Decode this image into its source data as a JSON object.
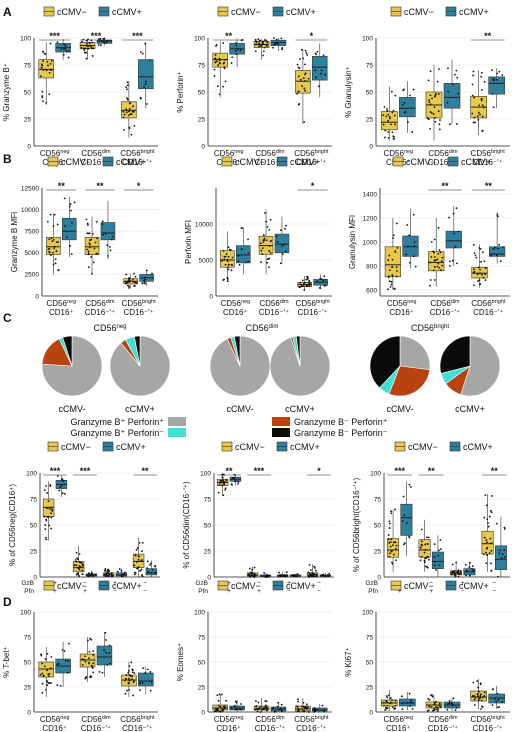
{
  "colors": {
    "cmv_neg": "#E8C84A",
    "cmv_pos": "#2E7F9B",
    "ggb_gray": "#A6A6A6",
    "gzb_only": "#3FE0D6",
    "pfn_only": "#B8430F",
    "double_neg": "#0A0A0A"
  },
  "legend": {
    "neg": "cCMV−",
    "pos": "cCMV+"
  },
  "panels": {
    "A": {
      "letter": "A"
    },
    "B": {
      "letter": "B"
    },
    "C": {
      "letter": "C"
    },
    "D": {
      "letter": "D"
    }
  },
  "pie_legend": [
    {
      "label": "Granzyme B⁺ Perforin⁺",
      "color_key": "ggb_gray"
    },
    {
      "label": "Granzyme B⁻ Perforin⁺",
      "color_key": "pfn_only"
    },
    {
      "label": "Granzyme B⁺ Perforin⁻",
      "color_key": "gzb_only"
    },
    {
      "label": "Granzyme B⁻ Perforin⁻",
      "color_key": "double_neg"
    }
  ],
  "pie_groups": [
    {
      "title": "CD56neg",
      "neg_label": "cCMV-",
      "pos_label": "cCMV+"
    },
    {
      "title": "CD56dim",
      "neg_label": "cCMV-",
      "pos_label": "cCMV+"
    },
    {
      "title": "CD56bright",
      "neg_label": "cCMV-",
      "pos_label": "cCMV+"
    }
  ],
  "combo_rows": {
    "gzb": "GzB",
    "pfn": "Pfn",
    "gzb_signs": [
      "+",
      "−",
      "+",
      "−"
    ],
    "pfn_signs": [
      "+",
      "+",
      "−",
      "−"
    ]
  },
  "chart_data": [
    {
      "id": "A1",
      "type": "box",
      "ylabel": "% Granzyme B⁺",
      "ylim": [
        0,
        100
      ],
      "yticks": [
        0,
        25,
        50,
        75,
        100
      ],
      "categories": [
        "CD56neg CD16+",
        "CD56dim CD16−/+",
        "CD56bright CD16−/+"
      ],
      "significance": [
        "***",
        "***",
        "***"
      ],
      "series": [
        {
          "name": "cCMV−",
          "q1": [
            63,
            90,
            26
          ],
          "med": [
            71,
            93,
            33
          ],
          "q3": [
            80,
            96,
            41
          ],
          "lo": [
            38,
            80,
            8
          ],
          "hi": [
            96,
            99,
            60
          ]
        },
        {
          "name": "cCMV+",
          "q1": [
            87,
            95,
            53
          ],
          "med": [
            91,
            97,
            64
          ],
          "q3": [
            95,
            98,
            80
          ],
          "lo": [
            80,
            93,
            35
          ],
          "hi": [
            99,
            100,
            96
          ]
        }
      ]
    },
    {
      "id": "A2",
      "type": "box",
      "ylabel": "% Perforin⁺",
      "ylim": [
        0,
        100
      ],
      "yticks": [
        0,
        25,
        50,
        75,
        100
      ],
      "categories": [
        "CD56neg CD16+",
        "CD56dim CD16−/+",
        "CD56bright CD16−/+"
      ],
      "significance": [
        "**",
        "",
        "*"
      ],
      "series": [
        {
          "name": "cCMV−",
          "q1": [
            73,
            91,
            49
          ],
          "med": [
            80,
            94,
            60
          ],
          "q3": [
            86,
            97,
            70
          ],
          "lo": [
            45,
            80,
            20
          ],
          "hi": [
            97,
            99,
            90
          ]
        },
        {
          "name": "cCMV+",
          "q1": [
            85,
            93,
            61
          ],
          "med": [
            90,
            96,
            73
          ],
          "q3": [
            95,
            98,
            83
          ],
          "lo": [
            73,
            88,
            45
          ],
          "hi": [
            99,
            100,
            95
          ]
        }
      ]
    },
    {
      "id": "A3",
      "type": "box",
      "ylabel": "% Granulysin⁺",
      "ylim": [
        0,
        100
      ],
      "yticks": [
        0,
        25,
        50,
        75,
        100
      ],
      "categories": [
        "CD56neg CD16+",
        "CD56dim CD16−/+",
        "CD56bright CD16−/+"
      ],
      "significance": [
        "",
        "",
        "**"
      ],
      "series": [
        {
          "name": "cCMV−",
          "q1": [
            15,
            26,
            26
          ],
          "med": [
            22,
            38,
            36
          ],
          "q3": [
            32,
            50,
            46
          ],
          "lo": [
            5,
            5,
            10
          ],
          "hi": [
            55,
            75,
            70
          ]
        },
        {
          "name": "cCMV+",
          "q1": [
            27,
            35,
            48
          ],
          "med": [
            35,
            45,
            58
          ],
          "q3": [
            45,
            58,
            64
          ],
          "lo": [
            12,
            20,
            35
          ],
          "hi": [
            60,
            80,
            72
          ]
        }
      ]
    },
    {
      "id": "B1",
      "type": "box",
      "ylabel": "Granzyme B MFI",
      "ylim": [
        0,
        12500
      ],
      "yticks": [
        0,
        2500,
        5000,
        7500,
        10000,
        12500
      ],
      "categories": [
        "CD56neg CD16+",
        "CD56dim CD16−/+",
        "CD56bright CD16−/+"
      ],
      "significance": [
        "**",
        "**",
        "*"
      ],
      "series": [
        {
          "name": "cCMV−",
          "q1": [
            4800,
            4800,
            1400
          ],
          "med": [
            5700,
            5700,
            1700
          ],
          "q3": [
            6800,
            6800,
            2000
          ],
          "lo": [
            2500,
            2500,
            900
          ],
          "hi": [
            9500,
            9200,
            2600
          ]
        },
        {
          "name": "cCMV+",
          "q1": [
            6500,
            6500,
            1700
          ],
          "med": [
            7500,
            7300,
            2100
          ],
          "q3": [
            9000,
            8500,
            2500
          ],
          "lo": [
            4500,
            4300,
            1200
          ],
          "hi": [
            11500,
            11000,
            3000
          ]
        }
      ]
    },
    {
      "id": "B2",
      "type": "box",
      "ylabel": "Perforin MFI",
      "ylim": [
        0,
        15000
      ],
      "yticks": [
        0,
        5000,
        10000
      ],
      "categories": [
        "CD56neg CD16+",
        "CD56dim CD16−/+",
        "CD56bright CD16−/+"
      ],
      "significance": [
        "",
        "",
        "*"
      ],
      "series": [
        {
          "name": "cCMV−",
          "q1": [
            4000,
            5800,
            1300
          ],
          "med": [
            5000,
            7000,
            1600
          ],
          "q3": [
            6300,
            8300,
            1900
          ],
          "lo": [
            2000,
            3000,
            800
          ],
          "hi": [
            9000,
            12000,
            2800
          ]
        },
        {
          "name": "cCMV+",
          "q1": [
            4600,
            6000,
            1500
          ],
          "med": [
            5700,
            7200,
            1900
          ],
          "q3": [
            7000,
            8600,
            2300
          ],
          "lo": [
            3000,
            4500,
            1000
          ],
          "hi": [
            9500,
            11000,
            3000
          ]
        }
      ]
    },
    {
      "id": "B3",
      "type": "box",
      "ylabel": "Granulysin MFI",
      "ylim": [
        550,
        1450
      ],
      "yticks": [
        600,
        800,
        1000,
        1200,
        1400
      ],
      "categories": [
        "CD56neg CD16+",
        "CD56dim CD16−/+",
        "CD56bright CD16−/+"
      ],
      "significance": [
        "",
        "**",
        "**"
      ],
      "series": [
        {
          "name": "cCMV−",
          "q1": [
            710,
            760,
            700
          ],
          "med": [
            810,
            830,
            740
          ],
          "q3": [
            960,
            920,
            790
          ],
          "lo": [
            600,
            630,
            620
          ],
          "hi": [
            1200,
            1200,
            980
          ]
        },
        {
          "name": "cCMV+",
          "q1": [
            880,
            950,
            880
          ],
          "med": [
            960,
            1010,
            900
          ],
          "q3": [
            1050,
            1090,
            960
          ],
          "lo": [
            780,
            800,
            820
          ],
          "hi": [
            1280,
            1300,
            1250
          ]
        }
      ]
    },
    {
      "id": "C1",
      "type": "pie",
      "title": "CD56neg",
      "slices": [
        {
          "name": "cCMV-",
          "values": {
            "ggb_gray": 0.76,
            "pfn_only": 0.17,
            "gzb_only": 0.02,
            "double_neg": 0.05
          }
        },
        {
          "name": "cCMV+",
          "values": {
            "ggb_gray": 0.89,
            "pfn_only": 0.03,
            "gzb_only": 0.05,
            "double_neg": 0.03
          }
        }
      ]
    },
    {
      "id": "C2",
      "type": "pie",
      "title": "CD56dim",
      "slices": [
        {
          "name": "cCMV-",
          "values": {
            "ggb_gray": 0.93,
            "pfn_only": 0.02,
            "gzb_only": 0.02,
            "double_neg": 0.03
          }
        },
        {
          "name": "cCMV+",
          "values": {
            "ggb_gray": 0.95,
            "pfn_only": 0.01,
            "gzb_only": 0.02,
            "double_neg": 0.02
          }
        }
      ]
    },
    {
      "id": "C3",
      "type": "pie",
      "title": "CD56bright",
      "slices": [
        {
          "name": "cCMV-",
          "values": {
            "ggb_gray": 0.27,
            "pfn_only": 0.29,
            "gzb_only": 0.06,
            "double_neg": 0.38
          }
        },
        {
          "name": "cCMV+",
          "values": {
            "ggb_gray": 0.55,
            "pfn_only": 0.1,
            "gzb_only": 0.06,
            "double_neg": 0.29
          }
        }
      ]
    },
    {
      "id": "C4",
      "type": "box",
      "ylabel": "% of CD56neg(CD16⁺)",
      "ylim": [
        0,
        100
      ],
      "yticks": [
        0,
        25,
        50,
        75,
        100
      ],
      "categories": [
        "GzB+Pfn+",
        "GzB−Pfn+",
        "GzB+Pfn−",
        "GzB−Pfn−"
      ],
      "significance": [
        "***",
        "***",
        "",
        "**"
      ],
      "series": [
        {
          "name": "cCMV−",
          "q1": [
            58,
            5,
            1,
            9
          ],
          "med": [
            67,
            9,
            2,
            15
          ],
          "q3": [
            75,
            15,
            4,
            22
          ],
          "lo": [
            35,
            0,
            0,
            0
          ],
          "hi": [
            92,
            30,
            8,
            38
          ]
        },
        {
          "name": "cCMV+",
          "q1": [
            85,
            1,
            1,
            2
          ],
          "med": [
            89,
            2,
            2,
            4
          ],
          "q3": [
            93,
            3,
            4,
            8
          ],
          "lo": [
            77,
            0,
            0,
            0
          ],
          "hi": [
            98,
            6,
            8,
            16
          ]
        }
      ]
    },
    {
      "id": "C5",
      "type": "box",
      "ylabel": "% of CD56dim(CD16⁻ʹ⁺)",
      "ylim": [
        0,
        100
      ],
      "yticks": [
        0,
        25,
        50,
        75,
        100
      ],
      "categories": [
        "GzB+Pfn+",
        "GzB−Pfn+",
        "GzB+Pfn−",
        "GzB−Pfn−"
      ],
      "significance": [
        "**",
        "***",
        "",
        "*"
      ],
      "series": [
        {
          "name": "cCMV−",
          "q1": [
            88,
            1,
            1,
            1
          ],
          "med": [
            91,
            2,
            1,
            2
          ],
          "q3": [
            94,
            4,
            2,
            4
          ],
          "lo": [
            78,
            0,
            0,
            0
          ],
          "hi": [
            99,
            10,
            5,
            12
          ]
        },
        {
          "name": "cCMV+",
          "q1": [
            92,
            0,
            1,
            1
          ],
          "med": [
            94,
            1,
            1,
            1
          ],
          "q3": [
            96,
            2,
            2,
            2
          ],
          "lo": [
            88,
            0,
            0,
            0
          ],
          "hi": [
            99,
            4,
            3,
            4
          ]
        }
      ]
    },
    {
      "id": "C6",
      "type": "box",
      "ylabel": "% of CD56bright(CD16⁻ʹ⁺)",
      "ylim": [
        0,
        100
      ],
      "yticks": [
        0,
        25,
        50,
        75,
        100
      ],
      "categories": [
        "GzB+Pfn+",
        "GzB−Pfn+",
        "GzB+Pfn−",
        "GzB−Pfn−"
      ],
      "significance": [
        "***",
        "**",
        "",
        "**"
      ],
      "series": [
        {
          "name": "cCMV−",
          "q1": [
            19,
            19,
            2,
            22
          ],
          "med": [
            26,
            26,
            4,
            32
          ],
          "q3": [
            37,
            36,
            6,
            44
          ],
          "lo": [
            5,
            5,
            0,
            5
          ],
          "hi": [
            65,
            55,
            14,
            80
          ]
        },
        {
          "name": "cCMV+",
          "q1": [
            40,
            8,
            2,
            7
          ],
          "med": [
            57,
            15,
            5,
            17
          ],
          "q3": [
            70,
            24,
            8,
            30
          ],
          "lo": [
            20,
            0,
            0,
            0
          ],
          "hi": [
            92,
            40,
            14,
            58
          ]
        }
      ]
    },
    {
      "id": "D1",
      "type": "box",
      "ylabel": "% T-bet⁺",
      "ylim": [
        0,
        100
      ],
      "yticks": [
        0,
        25,
        50,
        75,
        100
      ],
      "categories": [
        "CD56neg CD16+",
        "CD56dim CD16−/+",
        "CD56bright CD16−/+"
      ],
      "significance": [
        "",
        "",
        ""
      ],
      "series": [
        {
          "name": "cCMV−",
          "q1": [
            35,
            45,
            26
          ],
          "med": [
            43,
            52,
            32
          ],
          "q3": [
            50,
            58,
            37
          ],
          "lo": [
            15,
            30,
            15
          ],
          "hi": [
            65,
            75,
            50
          ]
        },
        {
          "name": "cCMV+",
          "q1": [
            39,
            47,
            26
          ],
          "med": [
            46,
            55,
            31
          ],
          "q3": [
            53,
            66,
            39
          ],
          "lo": [
            25,
            35,
            18
          ],
          "hi": [
            70,
            80,
            45
          ]
        }
      ]
    },
    {
      "id": "D2",
      "type": "box",
      "ylabel": "% Eomes⁺",
      "ylim": [
        0,
        100
      ],
      "yticks": [
        0,
        25,
        50,
        75,
        100
      ],
      "categories": [
        "CD56neg CD16+",
        "CD56dim CD16−/+",
        "CD56bright CD16−/+"
      ],
      "significance": [
        "",
        "",
        ""
      ],
      "series": [
        {
          "name": "cCMV−",
          "q1": [
            2,
            2,
            1
          ],
          "med": [
            4,
            3,
            3
          ],
          "q3": [
            7,
            6,
            6
          ],
          "lo": [
            0,
            0,
            0
          ],
          "hi": [
            18,
            14,
            14
          ]
        },
        {
          "name": "cCMV+",
          "q1": [
            2,
            1,
            1
          ],
          "med": [
            4,
            3,
            2
          ],
          "q3": [
            6,
            5,
            4
          ],
          "lo": [
            0,
            0,
            0
          ],
          "hi": [
            12,
            10,
            8
          ]
        }
      ]
    },
    {
      "id": "D3",
      "type": "box",
      "ylabel": "% Ki67⁺",
      "ylim": [
        0,
        100
      ],
      "yticks": [
        0,
        25,
        50,
        75,
        100
      ],
      "categories": [
        "CD56neg CD16+",
        "CD56dim CD16−/+",
        "CD56bright CD16−/+"
      ],
      "significance": [
        "",
        "",
        ""
      ],
      "series": [
        {
          "name": "cCMV−",
          "q1": [
            6,
            4,
            11
          ],
          "med": [
            9,
            7,
            15
          ],
          "q3": [
            12,
            10,
            21
          ],
          "lo": [
            1,
            1,
            3
          ],
          "hi": [
            22,
            17,
            33
          ]
        },
        {
          "name": "cCMV+",
          "q1": [
            6,
            4,
            9
          ],
          "med": [
            9,
            7,
            14
          ],
          "q3": [
            13,
            10,
            18
          ],
          "lo": [
            2,
            1,
            3
          ],
          "hi": [
            20,
            14,
            26
          ]
        }
      ]
    }
  ]
}
